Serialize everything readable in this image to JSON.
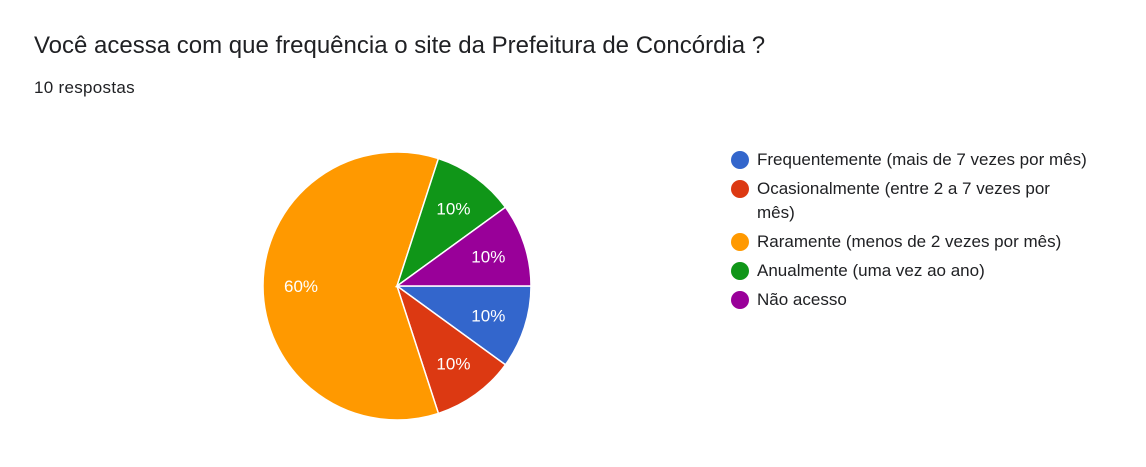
{
  "header": {
    "title": "Você acessa com que frequência o site da Prefeitura de Concórdia ?",
    "responses": "10 respostas"
  },
  "chart_data": {
    "type": "pie",
    "categories": [
      "Frequentemente (mais de 7 vezes por mês)",
      "Ocasionalmente (entre 2 a 7 vezes por mês)",
      "Raramente (menos de 2 vezes por mês)",
      "Anualmente (uma vez ao ano)",
      "Não acesso"
    ],
    "values": [
      10,
      10,
      60,
      10,
      10
    ],
    "labels": [
      "10%",
      "10%",
      "60%",
      "10%",
      "10%"
    ],
    "colors": [
      "#3366cc",
      "#dc3912",
      "#ff9900",
      "#109618",
      "#990099"
    ],
    "legend_position": "right"
  }
}
